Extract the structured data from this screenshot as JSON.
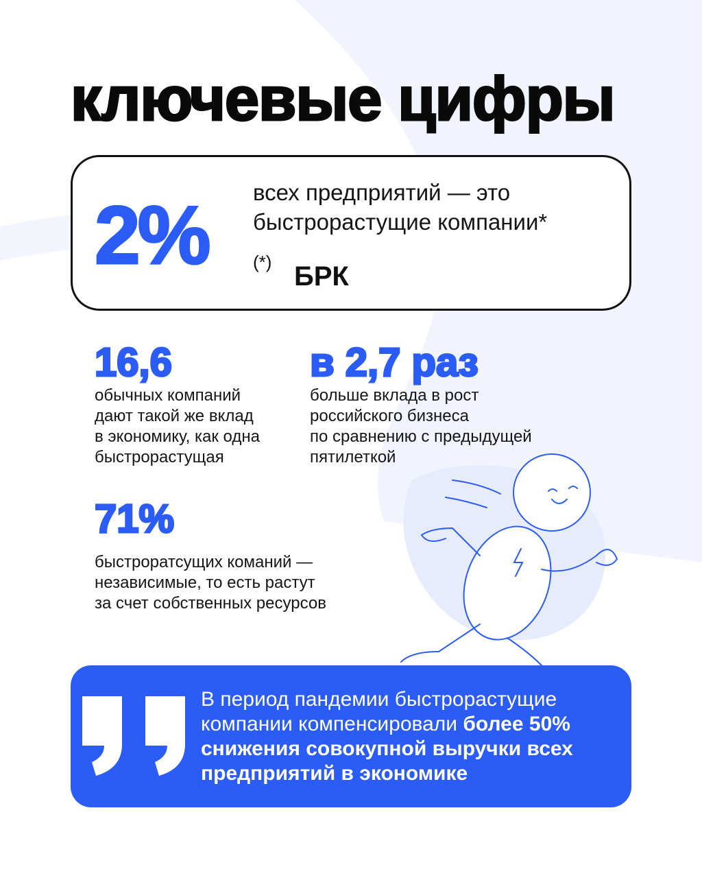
{
  "header": {
    "title": "ключевые цифры"
  },
  "highlight": {
    "number": "2%",
    "lines": [
      "всех предприятий — это",
      "быстрорастущие компании*"
    ],
    "footnote_mark": "(*)",
    "footnote_source": "БРК"
  },
  "stats": [
    {
      "number": "16,6",
      "lines": [
        "обычных компаний",
        "дают такой же вклад",
        "в экономику, как одна",
        "быстрорастущая"
      ]
    },
    {
      "number": "в 2,7 раз",
      "lines": [
        "больше вклада в рост",
        "российского бизнеса",
        "по сравнению с предыдущей",
        "пятилеткой"
      ]
    },
    {
      "number": "71%",
      "lines": [
        "быстроратсущих команий —",
        "независимые, то есть растут",
        "за счет собственных ресурсов"
      ]
    }
  ],
  "quote": {
    "regular": [
      "В период пандемии быстрорастущие",
      "компании компенсировали"
    ],
    "bold": [
      "более 50%",
      "снижения совокупной выручки всех",
      "предприятий в экономике"
    ]
  }
}
